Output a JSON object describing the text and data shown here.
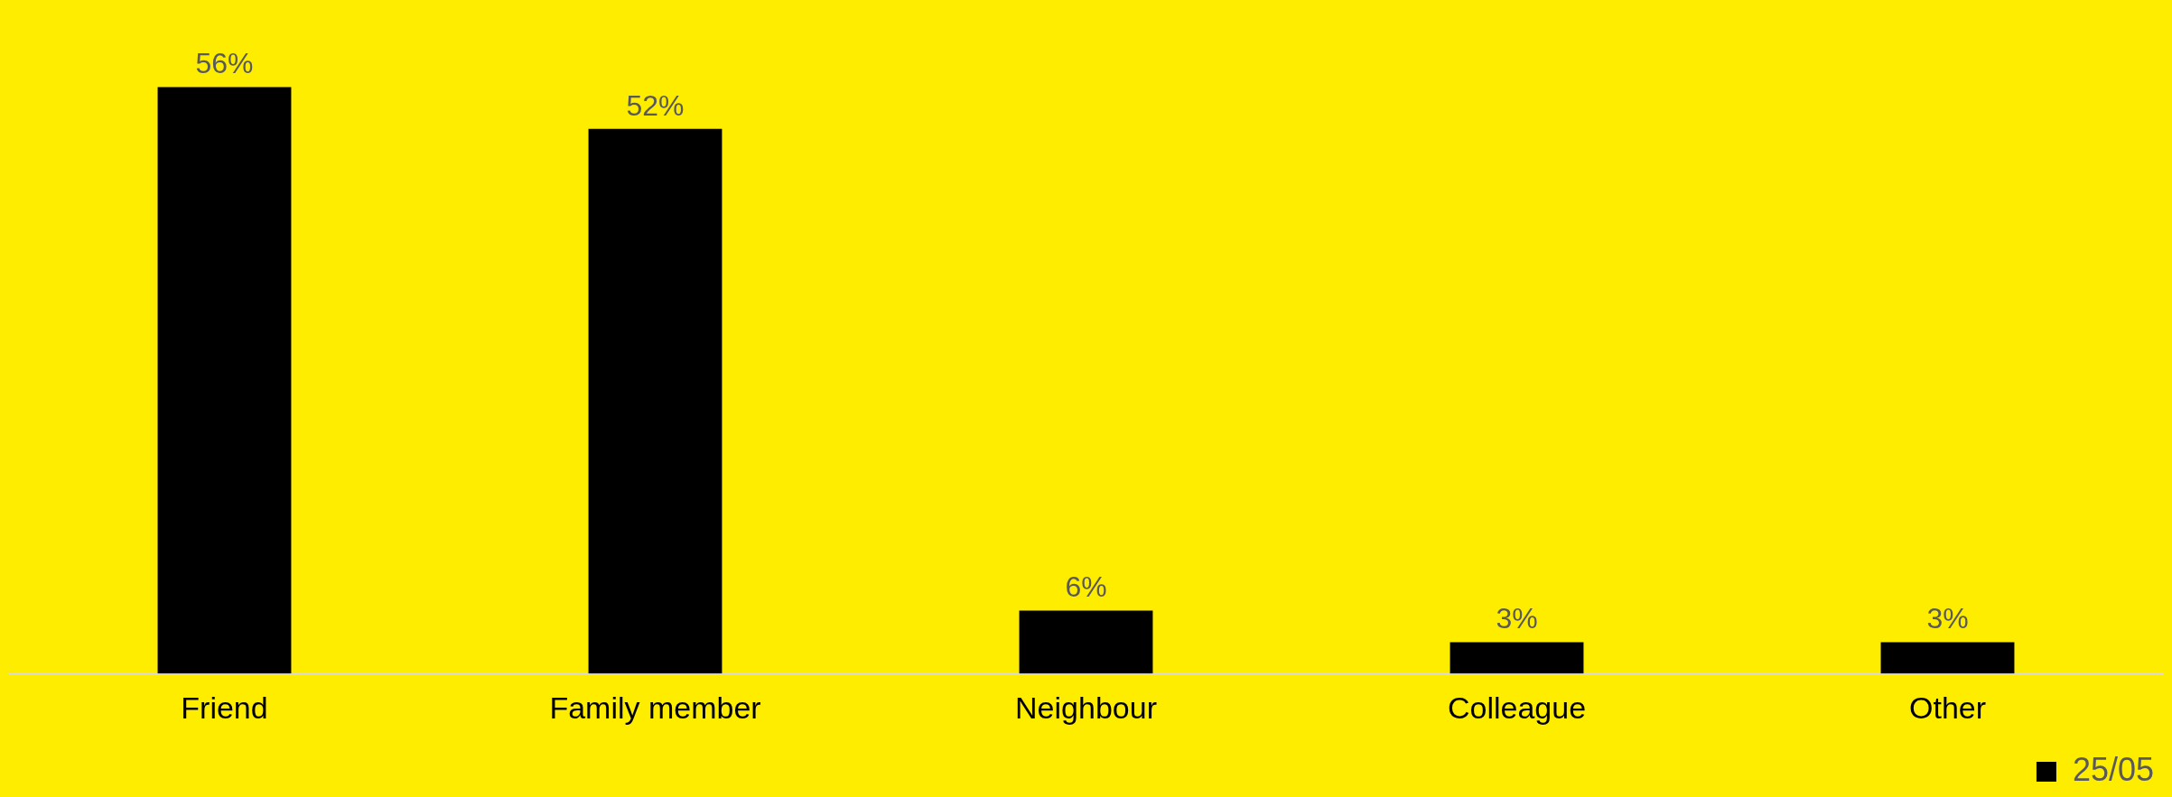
{
  "chart_data": {
    "type": "bar",
    "categories": [
      "Friend",
      "Family member",
      "Neighbour",
      "Colleague",
      "Other"
    ],
    "series": [
      {
        "name": "25/05",
        "color": "#000000",
        "values": [
          56,
          52,
          6,
          3,
          3
        ],
        "value_labels": [
          "56%",
          "52%",
          "6%",
          "3%",
          "3%"
        ]
      }
    ],
    "legend": "bottom right",
    "grid": false
  }
}
